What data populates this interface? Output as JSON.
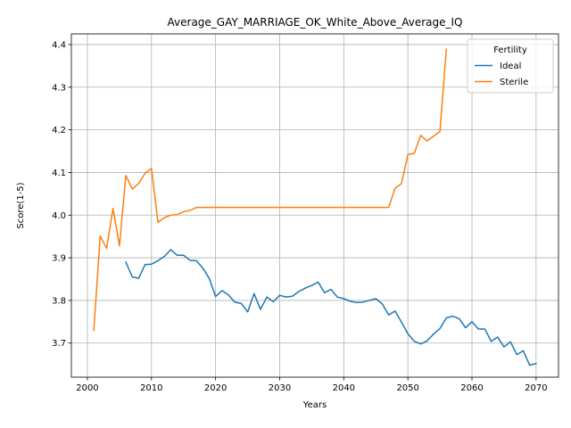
{
  "chart_data": {
    "type": "line",
    "title": "Average_GAY_MARRIAGE_OK_White_Above_Average_IQ",
    "xlabel": "Years",
    "ylabel": "Score(1-5)",
    "xlim": [
      1997.5,
      2073.5
    ],
    "ylim": [
      3.62,
      4.425
    ],
    "x_ticks": [
      2000,
      2010,
      2020,
      2030,
      2040,
      2050,
      2060,
      2070
    ],
    "y_ticks": [
      3.7,
      3.8,
      3.9,
      4.0,
      4.1,
      4.2,
      4.3,
      4.4
    ],
    "grid": true,
    "legend": {
      "title": "Fertility",
      "position": "top-right"
    },
    "series": [
      {
        "name": "Ideal",
        "color": "#1f77b4",
        "x": [
          2006,
          2007,
          2008,
          2009,
          2010,
          2011,
          2012,
          2013,
          2014,
          2015,
          2016,
          2017,
          2018,
          2019,
          2020,
          2021,
          2022,
          2023,
          2024,
          2025,
          2026,
          2027,
          2028,
          2029,
          2030,
          2031,
          2032,
          2033,
          2034,
          2035,
          2036,
          2037,
          2038,
          2039,
          2040,
          2041,
          2042,
          2043,
          2044,
          2045,
          2046,
          2047,
          2048,
          2049,
          2050,
          2051,
          2052,
          2053,
          2054,
          2055,
          2056,
          2057,
          2058,
          2059,
          2060,
          2061,
          2062,
          2063,
          2064,
          2065,
          2066,
          2067,
          2068,
          2069,
          2070
        ],
        "y": [
          3.89,
          3.855,
          3.852,
          3.884,
          3.885,
          3.893,
          3.903,
          3.919,
          3.906,
          3.906,
          3.894,
          3.893,
          3.876,
          3.852,
          3.809,
          3.823,
          3.813,
          3.796,
          3.793,
          3.773,
          3.816,
          3.779,
          3.808,
          3.797,
          3.812,
          3.808,
          3.81,
          3.821,
          3.829,
          3.835,
          3.843,
          3.818,
          3.826,
          3.808,
          3.804,
          3.798,
          3.795,
          3.796,
          3.8,
          3.804,
          3.792,
          3.766,
          3.775,
          3.749,
          3.722,
          3.704,
          3.698,
          3.705,
          3.721,
          3.734,
          3.759,
          3.763,
          3.757,
          3.736,
          3.75,
          3.733,
          3.733,
          3.704,
          3.714,
          3.691,
          3.703,
          3.673,
          3.682,
          3.648,
          3.652
        ]
      },
      {
        "name": "Sterile",
        "color": "#ff7f0e",
        "x": [
          2001,
          2002,
          2003,
          2004,
          2005,
          2006,
          2007,
          2008,
          2009,
          2010,
          2011,
          2012,
          2013,
          2014,
          2015,
          2016,
          2017,
          2018,
          2019,
          2020,
          2021,
          2022,
          2023,
          2024,
          2025,
          2026,
          2027,
          2028,
          2029,
          2030,
          2031,
          2032,
          2033,
          2034,
          2035,
          2036,
          2037,
          2038,
          2039,
          2040,
          2041,
          2042,
          2043,
          2044,
          2045,
          2046,
          2047,
          2048,
          2049,
          2050,
          2051,
          2052,
          2053,
          2054,
          2055,
          2056
        ],
        "y": [
          3.73,
          3.951,
          3.922,
          4.016,
          3.928,
          4.093,
          4.061,
          4.074,
          4.098,
          4.11,
          3.983,
          3.994,
          4.0,
          4.001,
          4.008,
          4.011,
          4.018,
          4.018,
          4.018,
          4.018,
          4.018,
          4.018,
          4.018,
          4.018,
          4.018,
          4.018,
          4.018,
          4.018,
          4.018,
          4.018,
          4.018,
          4.018,
          4.018,
          4.018,
          4.018,
          4.018,
          4.018,
          4.018,
          4.018,
          4.018,
          4.018,
          4.018,
          4.018,
          4.018,
          4.018,
          4.018,
          4.018,
          4.063,
          4.074,
          4.142,
          4.145,
          4.187,
          4.174,
          4.185,
          4.196,
          4.389
        ]
      }
    ]
  }
}
